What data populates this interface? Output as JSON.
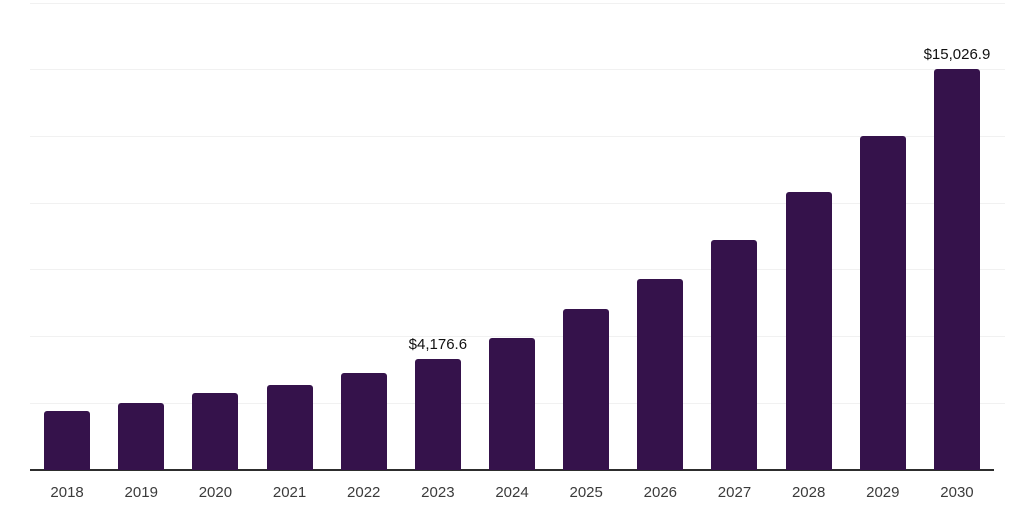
{
  "chart_data": {
    "type": "bar",
    "title": "",
    "xlabel": "",
    "ylabel": "",
    "categories": [
      "2018",
      "2019",
      "2020",
      "2021",
      "2022",
      "2023",
      "2024",
      "2025",
      "2026",
      "2027",
      "2028",
      "2029",
      "2030"
    ],
    "values": [
      2200,
      2510,
      2880,
      3180,
      3630,
      4176.6,
      4950,
      6030,
      7150,
      8630,
      10400,
      12520,
      15026.9
    ],
    "data_labels": {
      "2023": "$4,176.6",
      "2030": "$15,026.9"
    },
    "ylim": [
      0,
      17500
    ],
    "gridline_step": 2500,
    "grid": true,
    "legend": false,
    "colors": {
      "bar": "#35124B",
      "gridline": "#f1f1f1",
      "axis_line": "#2d2d2d",
      "tick_label": "#3b3b3b",
      "data_label": "#111111",
      "background": "#ffffff"
    }
  }
}
